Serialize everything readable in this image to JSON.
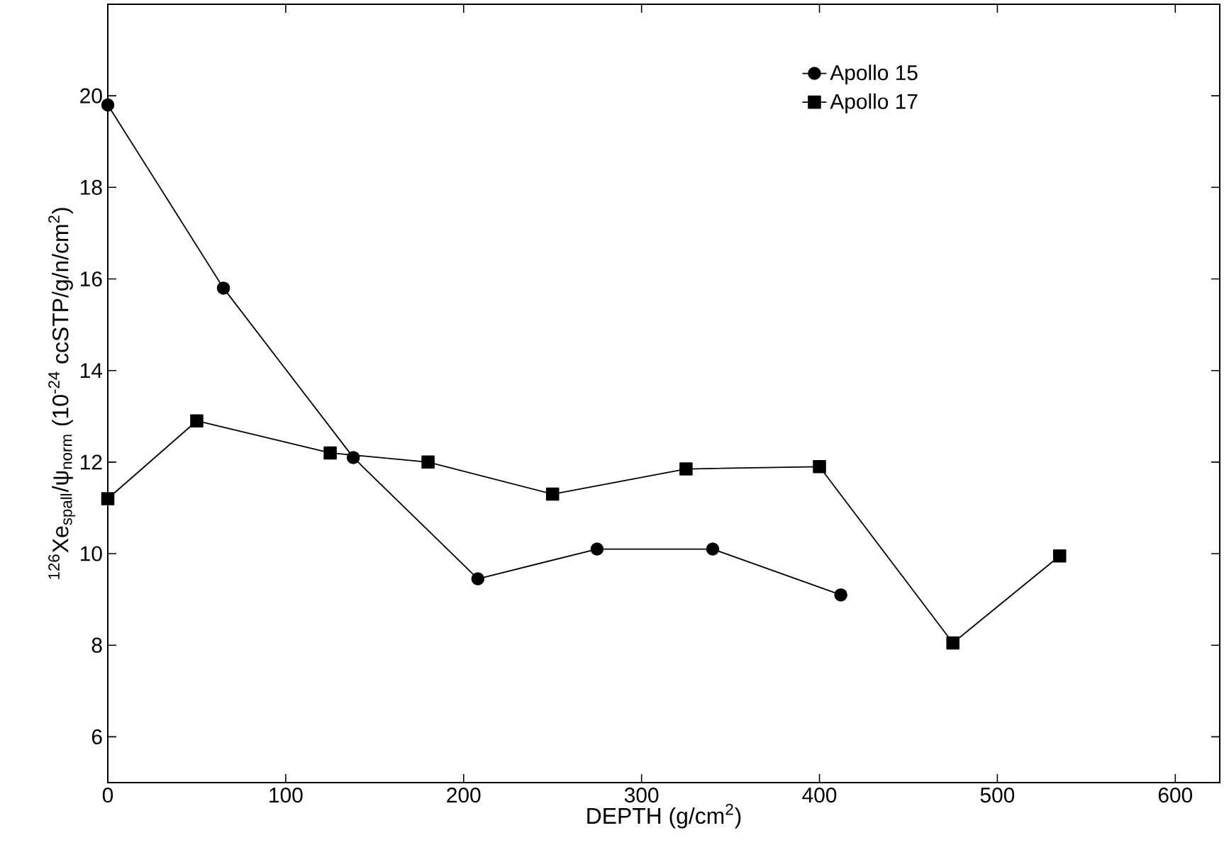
{
  "chart_data": {
    "type": "line",
    "xlabel": "DEPTH (g/cm$^{2}$)",
    "ylabel": "$^{126}$Xe$_{spall}$/ψ$_{norm}$  (10$^{-24}$ ccSTP/g/n/cm$^{2}$)",
    "series": [
      {
        "name": "Apollo 15",
        "color": "#000000",
        "marker": "circle",
        "x": [
          0,
          65,
          138,
          208,
          275,
          340,
          412
        ],
        "values": [
          19.8,
          15.8,
          12.1,
          9.45,
          10.1,
          10.1,
          9.1
        ]
      },
      {
        "name": "Apollo 17",
        "color": "#000000",
        "marker": "square",
        "x": [
          0,
          50,
          125,
          180,
          250,
          325,
          400,
          475,
          535
        ],
        "values": [
          11.2,
          12.9,
          12.2,
          12.0,
          11.3,
          11.85,
          11.9,
          8.05,
          9.95
        ]
      }
    ],
    "xlim": [
      0,
      625
    ],
    "ylim": [
      5,
      22
    ],
    "xticks": [
      0,
      100,
      200,
      300,
      400,
      500,
      600
    ],
    "yticks": [
      6,
      8,
      10,
      12,
      14,
      16,
      18,
      20
    ],
    "grid": false,
    "legend": "top right",
    "line_style": "solid"
  }
}
